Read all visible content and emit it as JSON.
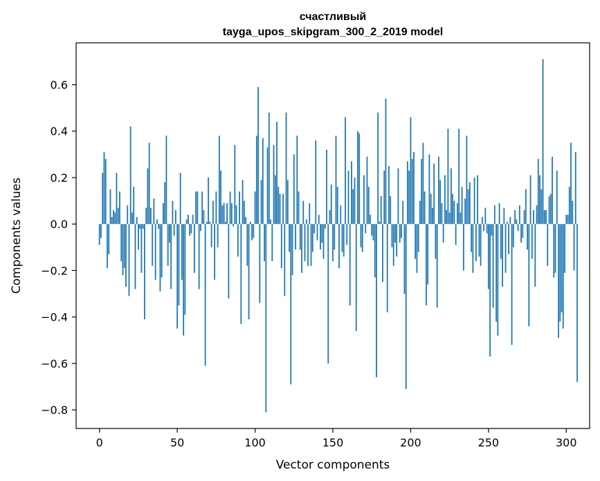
{
  "chart_data": {
    "type": "bar",
    "title": [
      "счастливый",
      "tayga_upos_skipgram_300_2_2019 model"
    ],
    "xlabel": "Vector components",
    "ylabel": "Components values",
    "xlim": [
      -15,
      315
    ],
    "ylim": [
      -0.88,
      0.78
    ],
    "xticks": [
      0,
      50,
      100,
      150,
      200,
      250,
      300
    ],
    "yticks": [
      -0.8,
      -0.6,
      -0.4,
      -0.2,
      0.0,
      0.2,
      0.4,
      0.6
    ],
    "ytick_labels": [
      "−0.8",
      "−0.6",
      "−0.4",
      "−0.2",
      "0.0",
      "0.2",
      "0.4",
      "0.6"
    ],
    "bar_color": "#1f77b4",
    "series": [
      {
        "name": "счастливый",
        "values": [
          -0.09,
          -0.06,
          0.22,
          0.31,
          0.28,
          -0.19,
          -0.13,
          0.15,
          0.03,
          0.06,
          0.05,
          0.22,
          0.07,
          0.14,
          -0.16,
          -0.22,
          -0.19,
          -0.27,
          0.08,
          -0.31,
          0.42,
          0.05,
          0.16,
          -0.28,
          0.03,
          -0.11,
          -0.02,
          -0.21,
          -0.02,
          -0.41,
          0.07,
          0.24,
          0.35,
          0.07,
          -0.18,
          0.11,
          -0.24,
          0.02,
          -0.02,
          -0.29,
          -0.23,
          0.09,
          0.18,
          0.38,
          -0.18,
          -0.08,
          -0.28,
          0.1,
          -0.05,
          0.06,
          -0.45,
          -0.35,
          0.22,
          -0.24,
          -0.48,
          -0.39,
          0.02,
          0.04,
          -0.05,
          -0.04,
          0.04,
          -0.21,
          0.14,
          0.14,
          -0.28,
          -0.03,
          0.14,
          0.06,
          -0.61,
          0.01,
          0.2,
          0.01,
          -0.1,
          0.1,
          -0.24,
          0.14,
          -0.1,
          0.38,
          0.23,
          0.08,
          0.09,
          0.01,
          0.09,
          -0.32,
          0.14,
          0.09,
          -0.01,
          0.34,
          0.08,
          -0.14,
          0.14,
          -0.43,
          0.19,
          0.1,
          0.03,
          -0.18,
          -0.41,
          0.01,
          -0.07,
          -0.06,
          0.14,
          0.38,
          0.59,
          -0.34,
          0.19,
          0.37,
          -0.16,
          -0.81,
          0.33,
          0.48,
          0.02,
          -0.16,
          0.34,
          0.21,
          0.44,
          0.16,
          0.13,
          -0.19,
          0.13,
          -0.31,
          0.48,
          0.19,
          -0.12,
          -0.69,
          -0.22,
          0.3,
          -0.11,
          0.38,
          0.14,
          -0.11,
          -0.21,
          0.1,
          -0.16,
          0.02,
          -0.18,
          0.09,
          -0.18,
          -0.12,
          -0.04,
          0.36,
          -0.07,
          0.04,
          -0.11,
          -0.08,
          -0.15,
          -0.02,
          0.32,
          -0.6,
          0.06,
          0.17,
          -0.16,
          -0.11,
          0.38,
          0.16,
          -0.19,
          0.08,
          -0.12,
          -0.14,
          0.46,
          -0.09,
          0.23,
          -0.35,
          0.27,
          0.15,
          0.2,
          -0.46,
          0.4,
          0.39,
          -0.1,
          -0.12,
          0.21,
          -0.04,
          0.29,
          0.16,
          0.04,
          -0.05,
          -0.07,
          -0.23,
          -0.66,
          0.48,
          0.01,
          0.12,
          -0.25,
          0.23,
          0.54,
          -0.38,
          0.25,
          0.12,
          -0.1,
          -0.18,
          -0.08,
          -0.14,
          0.24,
          -0.08,
          -0.06,
          0.1,
          -0.3,
          -0.71,
          0.27,
          0.23,
          0.46,
          0.28,
          0.31,
          -0.15,
          -0.21,
          -0.12,
          0.1,
          0.28,
          0.35,
          0.14,
          -0.35,
          -0.26,
          0.3,
          0.13,
          0.07,
          0.26,
          -0.15,
          -0.36,
          0.29,
          0.19,
          0.09,
          -0.08,
          0.21,
          0.06,
          0.41,
          0.05,
          0.24,
          0.13,
          0.1,
          -0.09,
          0.09,
          0.41,
          0.05,
          0.16,
          -0.2,
          0.11,
          0.38,
          0.15,
          0.18,
          -0.12,
          -0.21,
          0.2,
          -0.16,
          0.21,
          -0.14,
          -0.18,
          0.03,
          -0.03,
          0.07,
          -0.04,
          -0.28,
          -0.57,
          -0.05,
          -0.36,
          0.08,
          -0.42,
          -0.48,
          0.09,
          -0.15,
          -0.27,
          0.07,
          -0.21,
          0.01,
          -0.13,
          0.03,
          -0.52,
          -0.1,
          0.06,
          0.02,
          -0.03,
          0.08,
          -0.08,
          -0.06,
          0.06,
          0.15,
          -0.11,
          -0.44,
          0.21,
          -0.15,
          0.06,
          -0.27,
          0.08,
          0.28,
          0.21,
          0.15,
          0.71,
          0.06,
          0.06,
          -0.18,
          0.12,
          0.13,
          0.29,
          -0.23,
          -0.21,
          0.23,
          -0.49,
          -0.42,
          -0.38,
          -0.45,
          -0.21,
          0.04,
          0.04,
          0.16,
          0.35,
          0.1,
          -0.2,
          0.31,
          -0.68
        ]
      }
    ]
  }
}
